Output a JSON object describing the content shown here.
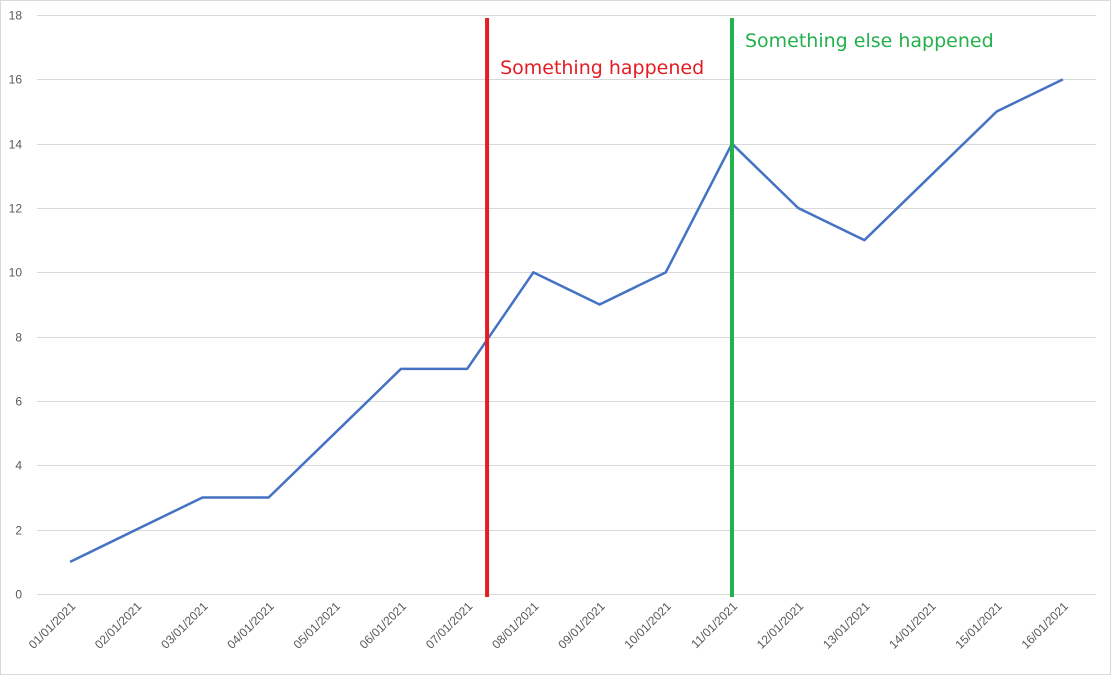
{
  "chart_data": {
    "type": "line",
    "title": "",
    "xlabel": "",
    "ylabel": "",
    "categories": [
      "01/01/2021",
      "02/01/2021",
      "03/01/2021",
      "04/01/2021",
      "05/01/2021",
      "06/01/2021",
      "07/01/2021",
      "08/01/2021",
      "09/01/2021",
      "10/01/2021",
      "11/01/2021",
      "12/01/2021",
      "13/01/2021",
      "14/01/2021",
      "15/01/2021",
      "16/01/2021"
    ],
    "series": [
      {
        "values": [
          1,
          2,
          3,
          3,
          5,
          7,
          7,
          10,
          9,
          10,
          14,
          12,
          11,
          13,
          15,
          16
        ],
        "color": "#4472c4"
      }
    ],
    "ylim": [
      0,
      18
    ],
    "yticks": [
      0,
      2,
      4,
      6,
      8,
      10,
      12,
      14,
      16,
      18
    ],
    "grid": true,
    "legend": "none",
    "annotations": [
      {
        "label": "Something happened",
        "x": "07/01/2021",
        "offset": 0.3,
        "color": "#e51c23"
      },
      {
        "label": "Something else happened",
        "x": "11/01/2021",
        "offset": 0.0,
        "color": "#22b14c"
      }
    ]
  }
}
